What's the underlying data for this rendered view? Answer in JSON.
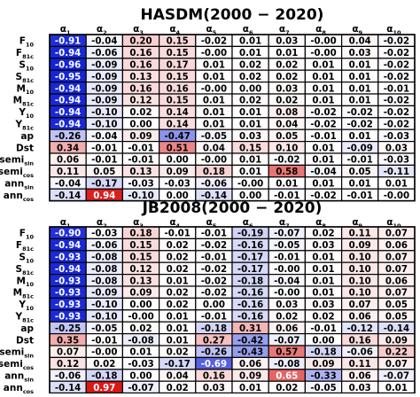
{
  "chart_data": [
    {
      "type": "heatmap",
      "title": "HASDM(2000 − 2020)",
      "columns": [
        {
          "base": "α",
          "sub": "1"
        },
        {
          "base": "α",
          "sub": "2"
        },
        {
          "base": "α",
          "sub": "3"
        },
        {
          "base": "α",
          "sub": "4"
        },
        {
          "base": "α",
          "sub": "5"
        },
        {
          "base": "α",
          "sub": "6"
        },
        {
          "base": "α",
          "sub": "7"
        },
        {
          "base": "α",
          "sub": "8"
        },
        {
          "base": "α",
          "sub": "9"
        },
        {
          "base": "α",
          "sub": "10"
        }
      ],
      "rows": [
        {
          "base": "F",
          "sub": "10"
        },
        {
          "base": "F",
          "sub": "81c"
        },
        {
          "base": "S",
          "sub": "10"
        },
        {
          "base": "S",
          "sub": "81c"
        },
        {
          "base": "M",
          "sub": "10"
        },
        {
          "base": "M",
          "sub": "81c"
        },
        {
          "base": "Y",
          "sub": "10"
        },
        {
          "base": "Y",
          "sub": "81c"
        },
        {
          "base": "ap",
          "sub": ""
        },
        {
          "base": "Dst",
          "sub": ""
        },
        {
          "base": "semi",
          "sub": "sin"
        },
        {
          "base": "semi",
          "sub": "cos"
        },
        {
          "base": "ann",
          "sub": "sin"
        },
        {
          "base": "ann",
          "sub": "cos"
        }
      ],
      "values": [
        [
          -0.91,
          -0.04,
          0.2,
          0.15,
          -0.02,
          0.01,
          0.03,
          -0.0,
          0.04,
          -0.02
        ],
        [
          -0.94,
          -0.06,
          0.16,
          0.15,
          -0.0,
          0.01,
          0.01,
          -0.0,
          0.03,
          -0.02
        ],
        [
          -0.96,
          -0.09,
          0.16,
          0.17,
          0.01,
          0.02,
          0.02,
          0.01,
          0.01,
          -0.02
        ],
        [
          -0.95,
          -0.09,
          0.13,
          0.15,
          0.01,
          0.02,
          0.02,
          0.01,
          0.01,
          -0.02
        ],
        [
          -0.94,
          -0.09,
          0.16,
          0.16,
          -0.0,
          0.0,
          0.03,
          0.01,
          0.01,
          -0.01
        ],
        [
          -0.94,
          -0.09,
          0.12,
          0.15,
          0.01,
          0.02,
          0.02,
          0.01,
          0.01,
          -0.02
        ],
        [
          -0.94,
          -0.1,
          0.02,
          0.14,
          0.01,
          0.01,
          0.08,
          -0.02,
          -0.02,
          -0.02
        ],
        [
          -0.94,
          -0.1,
          0.0,
          0.14,
          0.01,
          0.01,
          0.04,
          -0.02,
          -0.02,
          -0.02
        ],
        [
          -0.26,
          -0.04,
          0.09,
          -0.47,
          -0.05,
          0.03,
          0.05,
          -0.01,
          0.01,
          -0.03
        ],
        [
          0.34,
          -0.01,
          -0.01,
          0.51,
          0.04,
          0.15,
          0.1,
          0.01,
          -0.09,
          0.03
        ],
        [
          0.06,
          -0.01,
          -0.01,
          0.0,
          -0.0,
          0.01,
          -0.02,
          0.01,
          -0.01,
          -0.03
        ],
        [
          0.11,
          0.05,
          0.13,
          0.09,
          0.18,
          0.01,
          0.58,
          -0.04,
          0.05,
          -0.11
        ],
        [
          -0.04,
          -0.17,
          -0.03,
          -0.03,
          -0.06,
          -0.0,
          0.01,
          0.01,
          0.01,
          0.01
        ],
        [
          -0.14,
          0.94,
          -0.1,
          0.0,
          -0.14,
          0.0,
          -0.01,
          -0.02,
          -0.01,
          -0.0
        ]
      ]
    },
    {
      "type": "heatmap",
      "title": "JB2008(2000 − 2020)",
      "columns": [
        {
          "base": "α",
          "sub": "1"
        },
        {
          "base": "α",
          "sub": "2"
        },
        {
          "base": "α",
          "sub": "3"
        },
        {
          "base": "α",
          "sub": "4"
        },
        {
          "base": "α",
          "sub": "5"
        },
        {
          "base": "α",
          "sub": "6"
        },
        {
          "base": "α",
          "sub": "7"
        },
        {
          "base": "α",
          "sub": "8"
        },
        {
          "base": "α",
          "sub": "9"
        },
        {
          "base": "α",
          "sub": "10"
        }
      ],
      "rows": [
        {
          "base": "F",
          "sub": "10"
        },
        {
          "base": "F",
          "sub": "81c"
        },
        {
          "base": "S",
          "sub": "10"
        },
        {
          "base": "S",
          "sub": "81c"
        },
        {
          "base": "M",
          "sub": "10"
        },
        {
          "base": "M",
          "sub": "81c"
        },
        {
          "base": "Y",
          "sub": "10"
        },
        {
          "base": "Y",
          "sub": "81c"
        },
        {
          "base": "ap",
          "sub": ""
        },
        {
          "base": "Dst",
          "sub": ""
        },
        {
          "base": "semi",
          "sub": "sin"
        },
        {
          "base": "semi",
          "sub": "cos"
        },
        {
          "base": "ann",
          "sub": "sin"
        },
        {
          "base": "ann",
          "sub": "cos"
        }
      ],
      "values": [
        [
          -0.9,
          -0.03,
          0.18,
          -0.01,
          -0.01,
          -0.19,
          -0.07,
          0.02,
          0.11,
          0.07
        ],
        [
          -0.94,
          -0.06,
          0.15,
          0.02,
          -0.02,
          -0.16,
          -0.05,
          0.03,
          0.09,
          0.06
        ],
        [
          -0.93,
          -0.08,
          0.15,
          0.02,
          -0.01,
          -0.17,
          -0.01,
          0.01,
          0.1,
          0.07
        ],
        [
          -0.94,
          -0.08,
          0.12,
          0.02,
          -0.02,
          -0.17,
          -0.0,
          0.01,
          0.1,
          0.07
        ],
        [
          -0.93,
          -0.08,
          0.13,
          0.01,
          -0.02,
          -0.18,
          -0.04,
          0.01,
          0.1,
          0.06
        ],
        [
          -0.93,
          -0.09,
          0.09,
          0.02,
          -0.02,
          -0.16,
          -0.0,
          0.01,
          0.1,
          0.07
        ],
        [
          -0.93,
          -0.1,
          0.0,
          0.02,
          0.0,
          -0.16,
          0.03,
          0.03,
          0.07,
          0.05
        ],
        [
          -0.93,
          -0.1,
          -0.0,
          0.01,
          -0.01,
          -0.16,
          0.02,
          0.02,
          0.06,
          0.05
        ],
        [
          -0.25,
          -0.05,
          0.02,
          0.01,
          -0.18,
          0.31,
          0.06,
          -0.01,
          -0.12,
          -0.14
        ],
        [
          0.35,
          -0.01,
          -0.08,
          0.01,
          0.27,
          -0.42,
          -0.07,
          0.0,
          0.16,
          0.09
        ],
        [
          0.07,
          -0.0,
          0.01,
          0.02,
          -0.26,
          -0.43,
          0.57,
          -0.18,
          -0.06,
          0.22
        ],
        [
          0.12,
          0.02,
          -0.03,
          -0.17,
          -0.69,
          0.06,
          -0.08,
          0.09,
          0.11,
          0.07
        ],
        [
          -0.06,
          -0.18,
          0.0,
          0.04,
          0.16,
          0.09,
          0.65,
          -0.33,
          0.06,
          -0.07
        ],
        [
          -0.14,
          0.97,
          -0.07,
          0.02,
          0.03,
          0.01,
          0.02,
          -0.05,
          0.03,
          0.01
        ]
      ]
    }
  ],
  "colors": {
    "negative": "#0a1ad2",
    "positive": "#d81111",
    "neutral": "#ffffff",
    "grid": "#000000",
    "text": "#000000"
  }
}
